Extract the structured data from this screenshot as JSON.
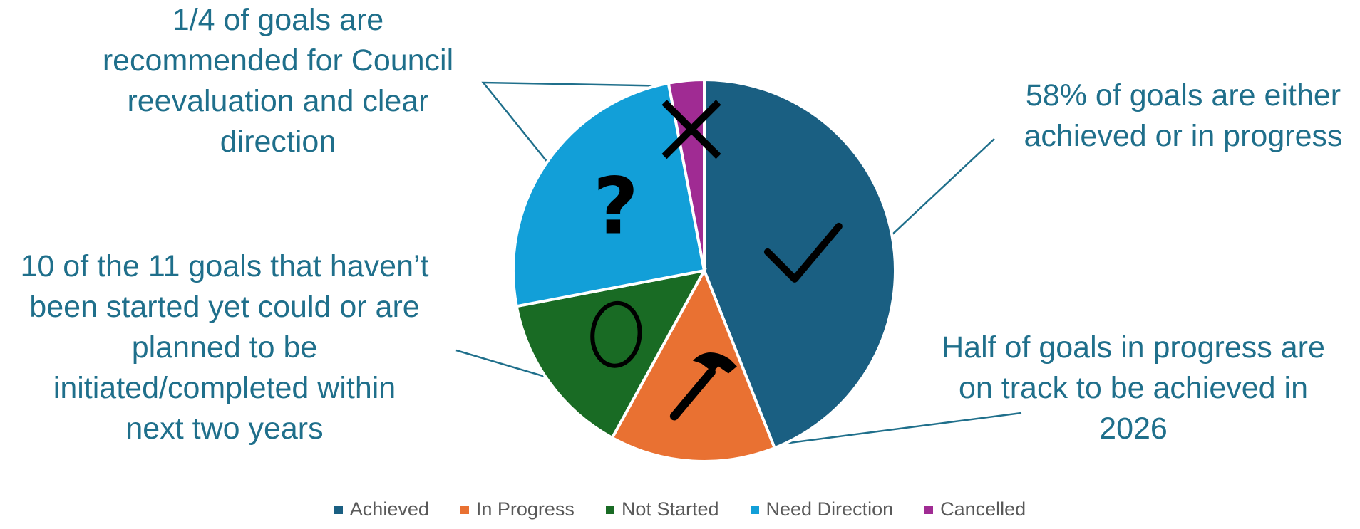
{
  "chart_data": {
    "type": "pie",
    "title": "",
    "start_angle_deg": 0,
    "direction": "clockwise",
    "slices": [
      {
        "name": "Achieved",
        "value": 44,
        "color": "#1a5f82",
        "icon": "check-icon"
      },
      {
        "name": "In Progress",
        "value": 14,
        "color": "#e97132",
        "icon": "hammer-icon"
      },
      {
        "name": "Not Started",
        "value": 14,
        "color": "#196b24",
        "icon": "egg-icon"
      },
      {
        "name": "Need Direction",
        "value": 25,
        "color": "#129fd8",
        "icon": "question-icon"
      },
      {
        "name": "Cancelled",
        "value": 3,
        "color": "#a02b93",
        "icon": "x-icon"
      }
    ],
    "legend_position": "bottom",
    "annotations": {
      "council": [
        "1/4 of goals are",
        "recommended for Council",
        "reevaluation and clear",
        "direction"
      ],
      "achieved": [
        "58% of goals are either",
        "achieved or in progress"
      ],
      "not_started": [
        "10 of the 11 goals that haven’t",
        "been started yet could or are",
        "planned to be",
        "initiated/completed within",
        "next two years"
      ],
      "in_progress": [
        "Half of goals in progress are",
        "on track to be achieved in",
        "2026"
      ]
    }
  }
}
